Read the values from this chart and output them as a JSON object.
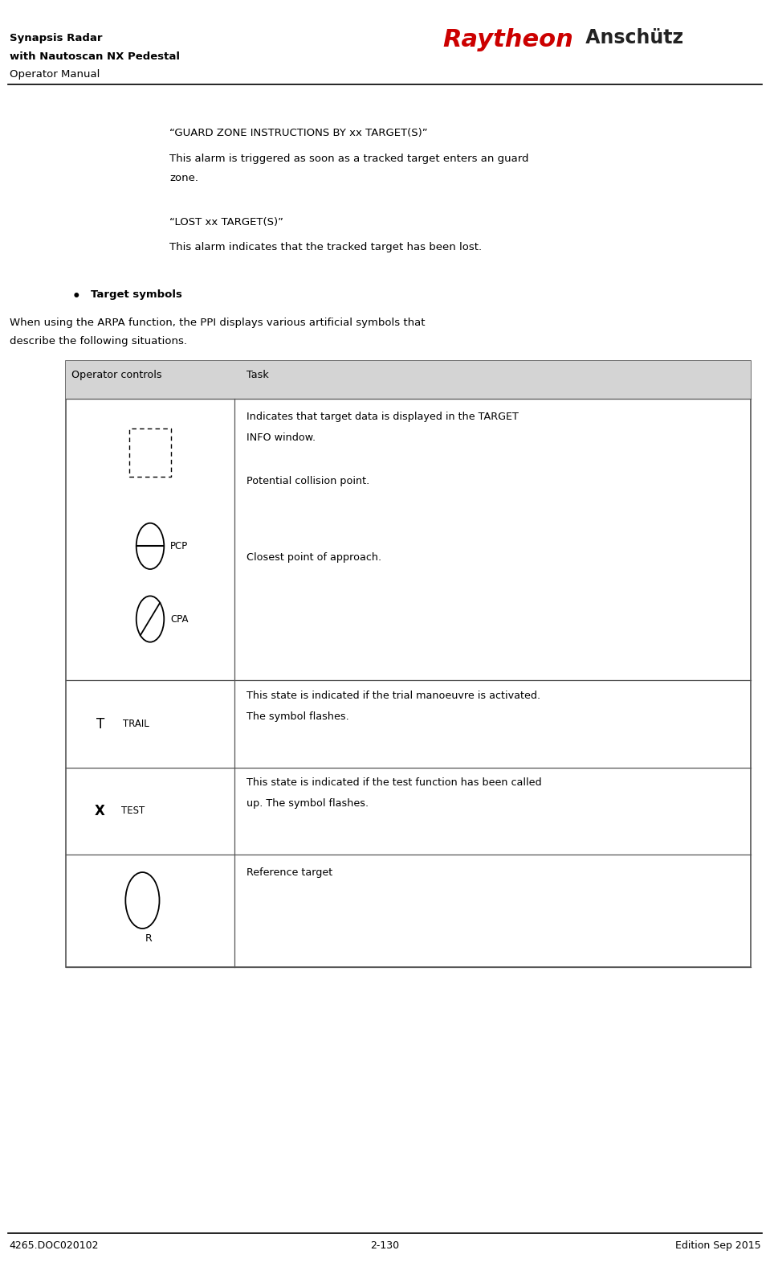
{
  "bg_color": "#ffffff",
  "header_left_lines": [
    "Synapsis Radar",
    "with Nautoscan NX Pedestal",
    "Operator Manual"
  ],
  "header_font_bold": [
    true,
    true,
    false
  ],
  "header_right_raytheon": "Raytheon",
  "header_right_anschutz": " Anschütz",
  "footer_left": "4265.DOC020102",
  "footer_center": "2-130",
  "footer_right": "Edition Sep 2015",
  "guard_zone_title": "“GUARD ZONE INSTRUCTIONS BY xx TARGET(S)”",
  "guard_zone_body": "This alarm is triggered as soon as a tracked target enters an guard\nzone.",
  "lost_title": "“LOST xx TARGET(S)”",
  "lost_body": "This alarm indicates that the tracked target has been lost.",
  "bullet_title": "Target symbols",
  "body_text_line1": "When using the ARPA function, the PPI displays various artificial symbols that",
  "body_text_line2": "describe the following situations.",
  "table_header_col1": "Operator controls",
  "table_header_col2": "Task",
  "raytheon_color": "#cc0000",
  "anschutz_color": "#222222",
  "table_header_bg": "#d4d4d4",
  "table_border_color": "#555555",
  "text_color": "#000000"
}
